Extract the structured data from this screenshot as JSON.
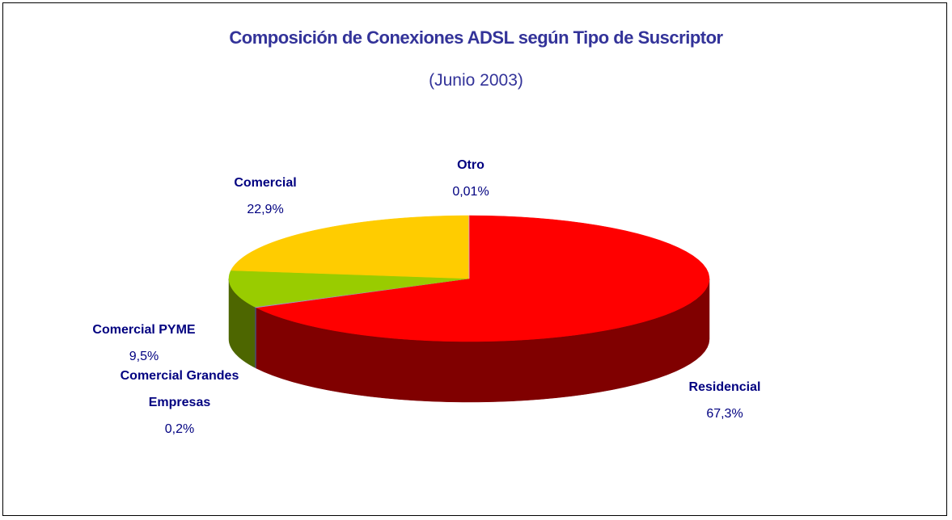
{
  "chart_data": {
    "type": "pie",
    "title": "Composición de Conexiones ADSL según Tipo de Suscriptor",
    "subtitle": "(Junio 2003)",
    "categories": [
      "Residencial",
      "Comercial Grandes Empresas",
      "Comercial PYME",
      "Comercial",
      "Otro"
    ],
    "values": [
      67.3,
      0.2,
      9.5,
      22.9,
      0.01
    ],
    "value_labels": [
      "67,3%",
      "0,2%",
      "9,5%",
      "22,9%",
      "0,01%"
    ],
    "colors": [
      "#ff0000",
      "#9999cc",
      "#99cc00",
      "#ffcc00",
      "#cc99ff"
    ]
  }
}
